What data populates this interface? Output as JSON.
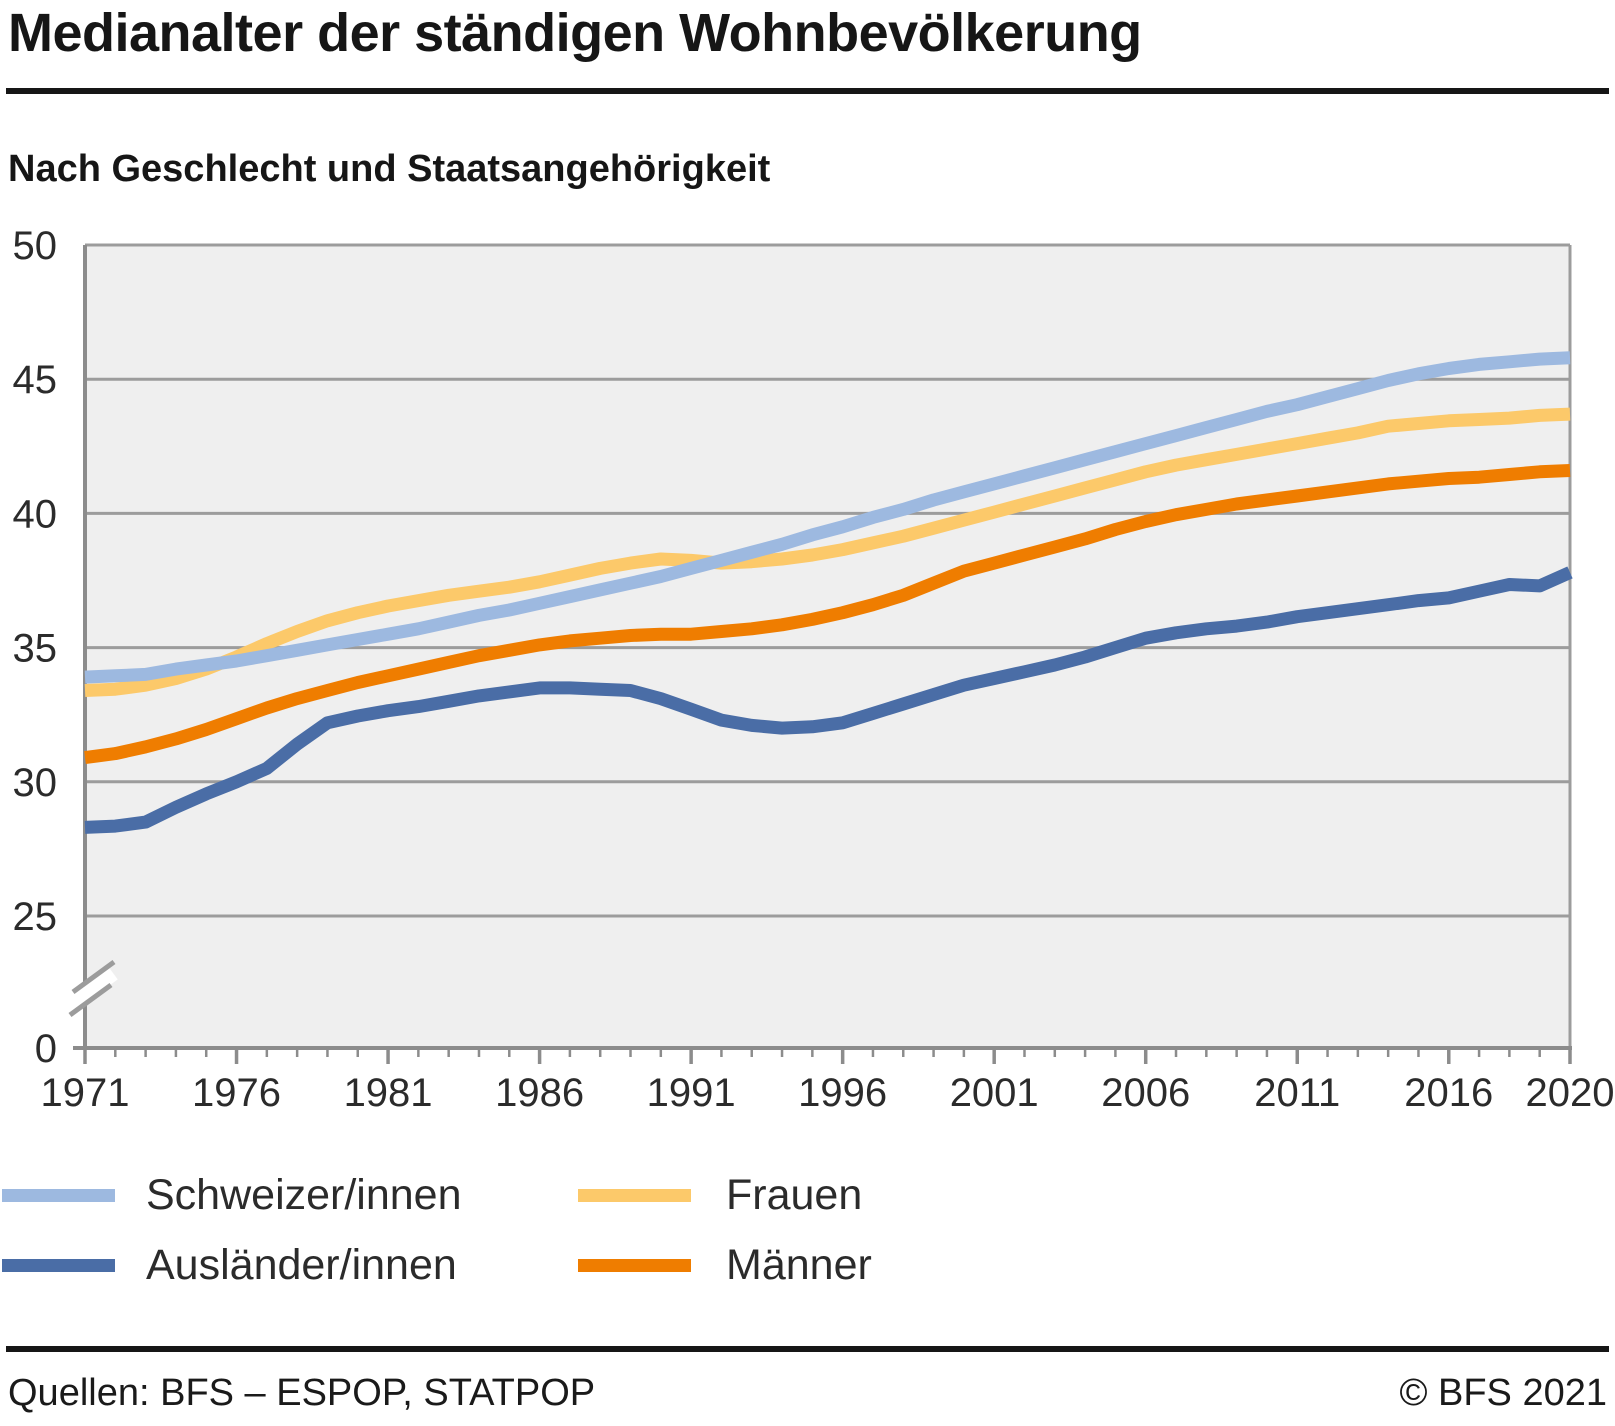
{
  "header": {
    "title": "Medianalter der ständigen Wohnbevölkerung",
    "subtitle": "Nach Geschlecht und Staatsangehörigkeit"
  },
  "chart_data": {
    "type": "line",
    "title": "Medianalter der ständigen Wohnbevölkerung",
    "subtitle": "Nach Geschlecht und Staatsangehörigkeit",
    "x_range": [
      1971,
      2020
    ],
    "x": [
      1971,
      1972,
      1973,
      1974,
      1975,
      1976,
      1977,
      1978,
      1979,
      1980,
      1981,
      1982,
      1983,
      1984,
      1985,
      1986,
      1987,
      1988,
      1989,
      1990,
      1991,
      1992,
      1993,
      1994,
      1995,
      1996,
      1997,
      1998,
      1999,
      2000,
      2001,
      2002,
      2003,
      2004,
      2005,
      2006,
      2007,
      2008,
      2009,
      2010,
      2011,
      2012,
      2013,
      2014,
      2015,
      2016,
      2017,
      2018,
      2019,
      2020
    ],
    "series": [
      {
        "name": "Schweizer/innen",
        "color": "#9db9e0",
        "values": [
          33.9,
          33.95,
          34.0,
          34.2,
          34.35,
          34.5,
          34.7,
          34.9,
          35.1,
          35.3,
          35.5,
          35.7,
          35.95,
          36.2,
          36.4,
          36.65,
          36.9,
          37.15,
          37.4,
          37.65,
          37.95,
          38.25,
          38.55,
          38.85,
          39.2,
          39.5,
          39.85,
          40.15,
          40.5,
          40.8,
          41.1,
          41.4,
          41.7,
          42.0,
          42.3,
          42.6,
          42.9,
          43.2,
          43.5,
          43.8,
          44.05,
          44.35,
          44.65,
          44.95,
          45.2,
          45.4,
          45.55,
          45.65,
          45.75,
          45.8
        ]
      },
      {
        "name": "Ausländer/innen",
        "color": "#4a6da6",
        "values": [
          28.3,
          28.35,
          28.5,
          29.05,
          29.55,
          30.0,
          30.5,
          31.4,
          32.2,
          32.45,
          32.65,
          32.8,
          33.0,
          33.2,
          33.35,
          33.5,
          33.5,
          33.45,
          33.4,
          33.1,
          32.7,
          32.3,
          32.1,
          32.0,
          32.05,
          32.2,
          32.55,
          32.9,
          33.25,
          33.6,
          33.85,
          34.1,
          34.35,
          34.65,
          35.0,
          35.35,
          35.55,
          35.7,
          35.8,
          35.95,
          36.15,
          36.3,
          36.45,
          36.6,
          36.75,
          36.85,
          37.1,
          37.35,
          37.3,
          37.8
        ]
      },
      {
        "name": "Frauen",
        "color": "#fcc96a",
        "values": [
          33.4,
          33.45,
          33.6,
          33.85,
          34.2,
          34.65,
          35.15,
          35.6,
          36.0,
          36.3,
          36.55,
          36.75,
          36.95,
          37.1,
          37.25,
          37.45,
          37.7,
          37.95,
          38.15,
          38.3,
          38.25,
          38.15,
          38.2,
          38.3,
          38.45,
          38.65,
          38.9,
          39.15,
          39.45,
          39.75,
          40.05,
          40.35,
          40.65,
          40.95,
          41.25,
          41.55,
          41.8,
          42.0,
          42.2,
          42.4,
          42.6,
          42.8,
          43.0,
          43.25,
          43.35,
          43.45,
          43.5,
          43.55,
          43.65,
          43.7
        ]
      },
      {
        "name": "Männer",
        "color": "#ef7d00",
        "values": [
          30.9,
          31.05,
          31.3,
          31.6,
          31.95,
          32.35,
          32.75,
          33.1,
          33.4,
          33.7,
          33.95,
          34.2,
          34.45,
          34.7,
          34.9,
          35.1,
          35.25,
          35.35,
          35.45,
          35.5,
          35.5,
          35.6,
          35.7,
          35.85,
          36.05,
          36.3,
          36.6,
          36.95,
          37.4,
          37.85,
          38.15,
          38.45,
          38.75,
          39.05,
          39.4,
          39.7,
          39.95,
          40.15,
          40.35,
          40.5,
          40.65,
          40.8,
          40.95,
          41.1,
          41.2,
          41.3,
          41.35,
          41.45,
          41.55,
          41.6
        ]
      }
    ],
    "z_order": [
      2,
      0,
      3,
      1
    ],
    "y_axis": {
      "ticks": [
        0,
        25,
        30,
        35,
        40,
        45,
        50
      ],
      "axis_break_between": [
        0,
        25
      ],
      "top": 50
    },
    "x_axis": {
      "labeled_ticks": [
        1971,
        1976,
        1981,
        1986,
        1991,
        1996,
        2001,
        2006,
        2011,
        2016,
        2020
      ],
      "minor_tick_every_year": true
    },
    "grid": true,
    "legend_position": "bottom"
  },
  "colors": {
    "plot_bg": "#efefef",
    "gridline": "#9c9c9c",
    "axis": "#8c8c8c",
    "tick_label": "#2b2b2b"
  },
  "footer": {
    "sources": "Quellen: BFS – ESPOP, STATPOP",
    "copyright": "© BFS 2021"
  }
}
